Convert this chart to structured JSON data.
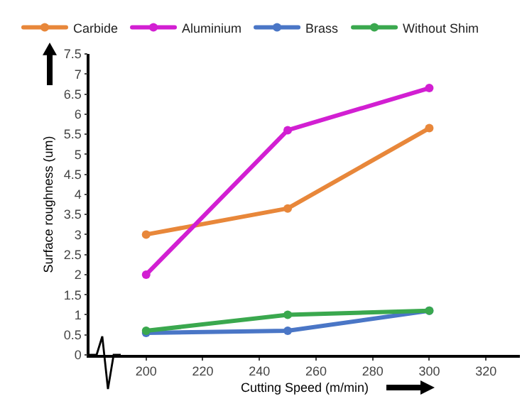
{
  "chart_data": {
    "type": "line",
    "xlabel": "Cutting Speed (m/min)",
    "ylabel": "Surface roughness (um)",
    "x": [
      200,
      250,
      300
    ],
    "series": [
      {
        "name": "Carbide",
        "color": "#e8873a",
        "values": [
          3,
          3.65,
          5.65
        ]
      },
      {
        "name": "Aluminium",
        "color": "#d21fd2",
        "values": [
          2,
          5.6,
          6.65
        ]
      },
      {
        "name": "Brass",
        "color": "#4a76c6",
        "values": [
          0.55,
          0.6,
          1.1
        ]
      },
      {
        "name": "Without Shim",
        "color": "#3aa84e",
        "values": [
          0.6,
          1.0,
          1.1
        ]
      }
    ],
    "xlim": [
      180,
      332
    ],
    "xticks": [
      200,
      220,
      240,
      260,
      280,
      300,
      320
    ],
    "ylim": [
      0,
      7.5
    ],
    "yticks": [
      0,
      0.5,
      1,
      1.5,
      2,
      2.5,
      3,
      3.5,
      4,
      4.5,
      5,
      5.5,
      6,
      6.5,
      7,
      7.5
    ],
    "grid": false,
    "legend": "top",
    "marker": "circle",
    "line_style": "solid"
  }
}
